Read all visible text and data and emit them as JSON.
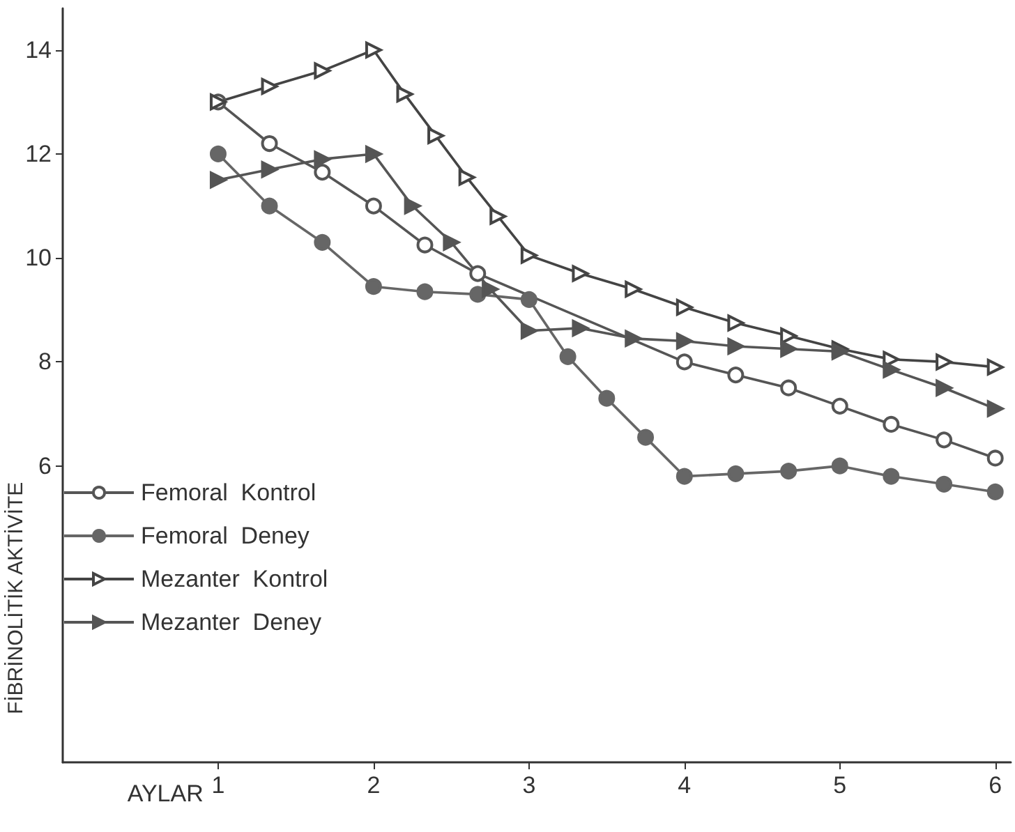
{
  "chart_data": {
    "type": "line",
    "xlabel": "AYLAR",
    "ylabel": "FİBRİNOLİTİK AKTİVİTE",
    "xlim": [
      0,
      6.1
    ],
    "xticks": [
      1,
      2,
      3,
      4,
      5,
      6
    ],
    "ylim": [
      0.3,
      14.8
    ],
    "yticks": [
      6,
      8,
      10,
      12,
      14
    ],
    "grid": false,
    "legend": "left",
    "line_style": "solid",
    "series": [
      {
        "name": "Femoral  Kontrol",
        "color": "#555555",
        "marker": "circle",
        "x": [
          1,
          1.33,
          1.67,
          2,
          2.33,
          2.67,
          4,
          4.33,
          4.67,
          5,
          5.33,
          5.67,
          6
        ],
        "values": [
          13.0,
          12.2,
          11.65,
          11.0,
          10.25,
          9.7,
          8.0,
          7.75,
          7.5,
          7.15,
          6.8,
          6.5,
          6.15
        ]
      },
      {
        "name": "Femoral  Deney",
        "color": "#666666",
        "marker": "circle",
        "x": [
          1,
          1.33,
          1.67,
          2,
          2.33,
          2.67,
          3,
          3.25,
          3.5,
          3.75,
          4,
          4.33,
          4.67,
          5,
          5.33,
          5.67,
          6
        ],
        "values": [
          12.0,
          11.0,
          10.3,
          9.45,
          9.35,
          9.3,
          9.2,
          8.1,
          7.3,
          6.55,
          5.8,
          5.85,
          5.9,
          6.0,
          5.8,
          5.65,
          5.5
        ]
      },
      {
        "name": "Mezanter  Kontrol",
        "color": "#444444",
        "marker": "triangle",
        "x": [
          1,
          1.33,
          1.67,
          2,
          2.2,
          2.4,
          2.6,
          2.8,
          3,
          3.33,
          3.67,
          4,
          4.33,
          4.67,
          5,
          5.33,
          5.67,
          6
        ],
        "values": [
          13.0,
          13.3,
          13.6,
          14.0,
          13.15,
          12.35,
          11.55,
          10.8,
          10.05,
          9.7,
          9.4,
          9.05,
          8.75,
          8.5,
          8.25,
          8.05,
          8.0,
          7.9
        ]
      },
      {
        "name": "Mezanter  Deney",
        "color": "#555555",
        "marker": "triangle",
        "x": [
          1,
          1.33,
          1.67,
          2,
          2.25,
          2.5,
          2.75,
          3,
          3.33,
          3.67,
          4,
          4.33,
          4.67,
          5,
          5.33,
          5.67,
          6
        ],
        "values": [
          11.5,
          11.7,
          11.9,
          12.0,
          11.0,
          10.3,
          9.4,
          8.6,
          8.65,
          8.45,
          8.4,
          8.3,
          8.25,
          8.2,
          7.85,
          7.5,
          7.1
        ]
      }
    ]
  }
}
